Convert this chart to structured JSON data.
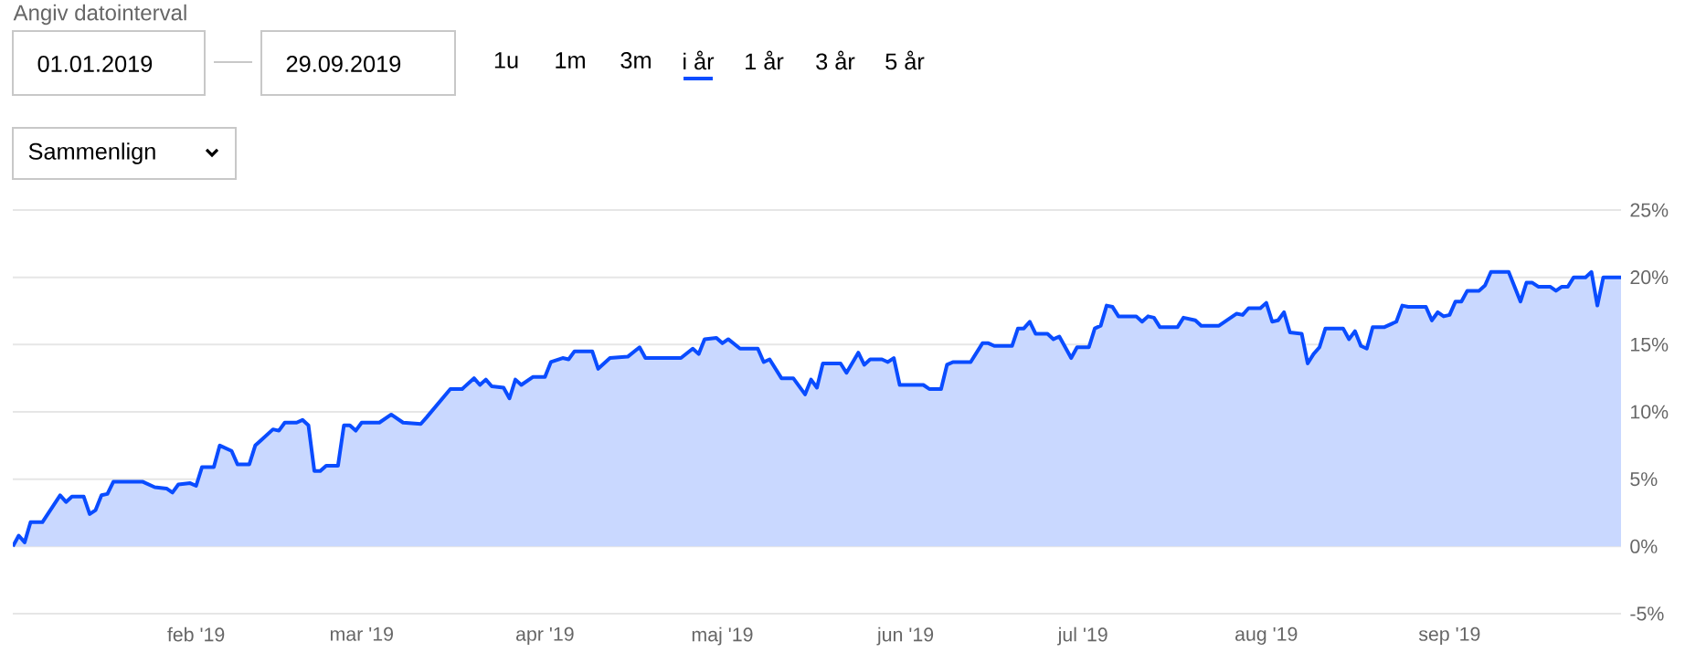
{
  "chart_data": {
    "type": "area",
    "color": "#0a4cff",
    "grid": "y",
    "marker": "none",
    "line_style": "solid",
    "xlim": [
      "2019-01-01",
      "2019-09-30"
    ],
    "xticks": [
      {
        "value": "2019-02-01",
        "label": "feb '19"
      },
      {
        "value": "2019-03-01",
        "label": "mar '19"
      },
      {
        "value": "2019-04-01",
        "label": "apr '19"
      },
      {
        "value": "2019-05-01",
        "label": "maj '19"
      },
      {
        "value": "2019-06-01",
        "label": "jun '19"
      },
      {
        "value": "2019-07-01",
        "label": "jul '19"
      },
      {
        "value": "2019-08-01",
        "label": "aug '19"
      },
      {
        "value": "2019-09-01",
        "label": "sep '19"
      }
    ],
    "ylim": [
      -5,
      25
    ],
    "yticks": [
      {
        "value": -5,
        "label": "-5%"
      },
      {
        "value": 0,
        "label": "0%"
      },
      {
        "value": 5,
        "label": "5%"
      },
      {
        "value": 10,
        "label": "10%"
      },
      {
        "value": 15,
        "label": "15%"
      },
      {
        "value": 20,
        "label": "20%"
      },
      {
        "value": 25,
        "label": "25%"
      }
    ],
    "annotations": [
      "Angiv datointerval",
      "01.01.2019",
      "29.09.2019",
      "1u",
      "1m",
      "3m",
      "i år",
      "1 år",
      "3 år",
      "5 år",
      "Sammenlign"
    ],
    "x": [
      "2019-01-01",
      "2019-01-02",
      "2019-01-03",
      "2019-01-04",
      "2019-01-06",
      "2019-01-09",
      "2019-01-10",
      "2019-01-11",
      "2019-01-13",
      "2019-01-14",
      "2019-01-15",
      "2019-01-16",
      "2019-01-17",
      "2019-01-18",
      "2019-01-23",
      "2019-01-25",
      "2019-01-27",
      "2019-01-28",
      "2019-01-29",
      "2019-01-31",
      "2019-02-01",
      "2019-02-02",
      "2019-02-04",
      "2019-02-05",
      "2019-02-07",
      "2019-02-08",
      "2019-02-10",
      "2019-02-11",
      "2019-02-12",
      "2019-02-14",
      "2019-02-15",
      "2019-02-16",
      "2019-02-18",
      "2019-02-19",
      "2019-02-20",
      "2019-02-21",
      "2019-02-22",
      "2019-02-23",
      "2019-02-25",
      "2019-02-26",
      "2019-02-27",
      "2019-02-28",
      "2019-03-01",
      "2019-03-04",
      "2019-03-06",
      "2019-03-08",
      "2019-03-11",
      "2019-03-12",
      "2019-03-16",
      "2019-03-18",
      "2019-03-20",
      "2019-03-21",
      "2019-03-22",
      "2019-03-23",
      "2019-03-25",
      "2019-03-26",
      "2019-03-27",
      "2019-03-28",
      "2019-03-30",
      "2019-04-01",
      "2019-04-02",
      "2019-04-04",
      "2019-04-05",
      "2019-04-06",
      "2019-04-09",
      "2019-04-10",
      "2019-04-12",
      "2019-04-15",
      "2019-04-17",
      "2019-04-18",
      "2019-04-24",
      "2019-04-26",
      "2019-04-27",
      "2019-04-28",
      "2019-04-30",
      "2019-05-01",
      "2019-05-02",
      "2019-05-04",
      "2019-05-07",
      "2019-05-08",
      "2019-05-09",
      "2019-05-11",
      "2019-05-13",
      "2019-05-15",
      "2019-05-16",
      "2019-05-17",
      "2019-05-18",
      "2019-05-21",
      "2019-05-22",
      "2019-05-24",
      "2019-05-25",
      "2019-05-26",
      "2019-05-28",
      "2019-05-29",
      "2019-05-30",
      "2019-05-31",
      "2019-06-04",
      "2019-06-05",
      "2019-06-07",
      "2019-06-08",
      "2019-06-09",
      "2019-06-12",
      "2019-06-14",
      "2019-06-15",
      "2019-06-16",
      "2019-06-19",
      "2019-06-20",
      "2019-06-21",
      "2019-06-22",
      "2019-06-23",
      "2019-06-25",
      "2019-06-26",
      "2019-06-27",
      "2019-06-29",
      "2019-06-30",
      "2019-07-02",
      "2019-07-03",
      "2019-07-04",
      "2019-07-05",
      "2019-07-06",
      "2019-07-07",
      "2019-07-10",
      "2019-07-11",
      "2019-07-12",
      "2019-07-13",
      "2019-07-14",
      "2019-07-17",
      "2019-07-18",
      "2019-07-20",
      "2019-07-21",
      "2019-07-24",
      "2019-07-27",
      "2019-07-28",
      "2019-07-29",
      "2019-07-31",
      "2019-08-01",
      "2019-08-02",
      "2019-08-03",
      "2019-08-04",
      "2019-08-05",
      "2019-08-07",
      "2019-08-08",
      "2019-08-09",
      "2019-08-10",
      "2019-08-11",
      "2019-08-14",
      "2019-08-15",
      "2019-08-16",
      "2019-08-17",
      "2019-08-18",
      "2019-08-19",
      "2019-08-21",
      "2019-08-23",
      "2019-08-24",
      "2019-08-25",
      "2019-08-28",
      "2019-08-29",
      "2019-08-30",
      "2019-08-31",
      "2019-09-01",
      "2019-09-02",
      "2019-09-03",
      "2019-09-04",
      "2019-09-06",
      "2019-09-07",
      "2019-09-08",
      "2019-09-11",
      "2019-09-13",
      "2019-09-14",
      "2019-09-15",
      "2019-09-16",
      "2019-09-18",
      "2019-09-19",
      "2019-09-20",
      "2019-09-21",
      "2019-09-22",
      "2019-09-24",
      "2019-09-25",
      "2019-09-26",
      "2019-09-27",
      "2019-09-30"
    ],
    "values": [
      0.0,
      0.8,
      0.3,
      1.8,
      1.8,
      3.8,
      3.3,
      3.7,
      3.7,
      2.4,
      2.7,
      3.8,
      3.9,
      4.8,
      4.8,
      4.4,
      4.3,
      4.0,
      4.6,
      4.7,
      4.5,
      5.9,
      5.9,
      7.5,
      7.1,
      6.1,
      6.1,
      7.5,
      7.9,
      8.7,
      8.6,
      9.2,
      9.2,
      9.4,
      9.0,
      5.6,
      5.6,
      6.0,
      6.0,
      9.0,
      9.0,
      8.6,
      9.2,
      9.2,
      9.8,
      9.2,
      9.1,
      9.6,
      11.7,
      11.7,
      12.5,
      12.0,
      12.4,
      11.9,
      11.8,
      11.0,
      12.4,
      12.0,
      12.6,
      12.6,
      13.7,
      14.0,
      13.9,
      14.5,
      14.5,
      13.2,
      14.0,
      14.1,
      14.8,
      14.0,
      14.0,
      14.7,
      14.3,
      15.4,
      15.5,
      15.1,
      15.4,
      14.7,
      14.7,
      13.7,
      13.9,
      12.5,
      12.5,
      11.3,
      12.4,
      11.8,
      13.6,
      13.6,
      12.9,
      14.4,
      13.5,
      13.9,
      13.9,
      13.7,
      14.0,
      12.0,
      12.0,
      11.7,
      11.7,
      13.5,
      13.7,
      13.7,
      15.1,
      15.1,
      14.9,
      14.9,
      16.2,
      16.2,
      16.7,
      15.8,
      15.8,
      15.4,
      15.6,
      14.0,
      14.8,
      14.8,
      16.2,
      16.4,
      17.9,
      17.8,
      17.1,
      17.1,
      16.7,
      17.1,
      17.0,
      16.3,
      16.3,
      17.0,
      16.8,
      16.4,
      16.4,
      17.3,
      17.2,
      17.7,
      17.7,
      18.1,
      16.7,
      16.8,
      17.4,
      15.9,
      15.8,
      13.6,
      14.3,
      14.8,
      16.2,
      16.2,
      15.4,
      16.0,
      14.9,
      14.7,
      16.3,
      16.3,
      16.7,
      17.9,
      17.8,
      17.8,
      16.8,
      17.4,
      17.1,
      17.2,
      18.2,
      18.2,
      19.0,
      19.0,
      19.4,
      20.4,
      20.4,
      18.2,
      19.6,
      19.6,
      19.3,
      19.3,
      19.0,
      19.3,
      19.3,
      20.0,
      20.0,
      20.4,
      17.9,
      20.0,
      20.0
    ]
  }
}
